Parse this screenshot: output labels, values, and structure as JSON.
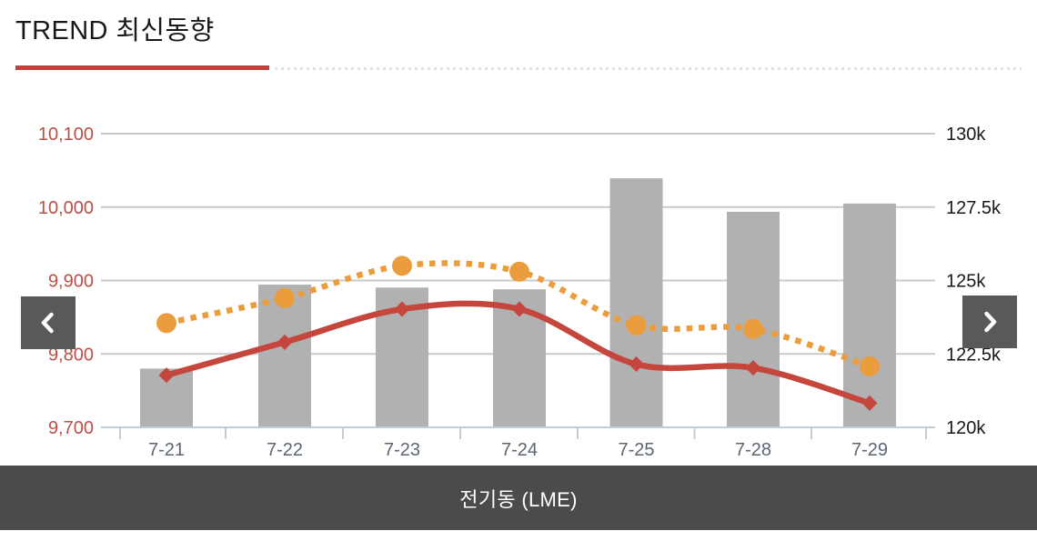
{
  "header": {
    "title": "TREND 최신동향"
  },
  "footer": {
    "label": "전기동 (LME)"
  },
  "nav": {
    "prev_icon": "chevron-left",
    "next_icon": "chevron-right"
  },
  "colors": {
    "title_text": "#191919",
    "title_underline": "#c2423b",
    "underline_dotted": "#e2e2ec",
    "bar_gray": "#b1b1b1",
    "line_red": "#c4463d",
    "line_orange": "#eb9d3e",
    "left_axis_label": "#bb4f48",
    "right_axis_label": "#191919",
    "x_axis_label": "#5b6673",
    "gridline": "#c9c9c9",
    "axis_line": "#c3cdd7",
    "nav_button_bg": "#595959",
    "caption_bar_bg": "#4b4b4b",
    "caption_text": "#ffffff"
  },
  "chart_data": {
    "type": "combo",
    "title": "",
    "categories": [
      "7-21",
      "7-22",
      "7-23",
      "7-24",
      "7-25",
      "7-28",
      "7-29"
    ],
    "left_axis": {
      "min": 9700,
      "max": 10100,
      "tick_interval": 100,
      "tick_labels_top_to_bottom": [
        "10,100",
        "10,000",
        "9,900",
        "9,800",
        "9,700"
      ],
      "label_color": "#bb4f48"
    },
    "right_axis": {
      "min": 120000,
      "max": 130000,
      "tick_interval": 2500,
      "tick_labels_top_to_bottom": [
        "130k",
        "127.5k",
        "125k",
        "122.5k",
        "120k"
      ],
      "label_color": "#191919"
    },
    "series": [
      {
        "name": "volume-bars",
        "type": "bar",
        "axis": "right",
        "color": "#b1b1b1",
        "values": [
          122000,
          124860,
          124760,
          124700,
          128480,
          127340,
          127620
        ]
      },
      {
        "name": "price-solid-line",
        "type": "line",
        "line_style": "solid",
        "marker": "diamond",
        "axis": "left",
        "color": "#c4463d",
        "values": [
          9771,
          9816,
          9861,
          9861,
          9786,
          9781,
          9733
        ]
      },
      {
        "name": "price-dotted-line",
        "type": "line",
        "line_style": "dotted",
        "marker": "circle",
        "axis": "left",
        "color": "#eb9d3e",
        "values": [
          9842,
          9876,
          9920,
          9912,
          9839,
          9834,
          9783
        ]
      }
    ],
    "grid": "horizontal-only",
    "legend": "none"
  }
}
